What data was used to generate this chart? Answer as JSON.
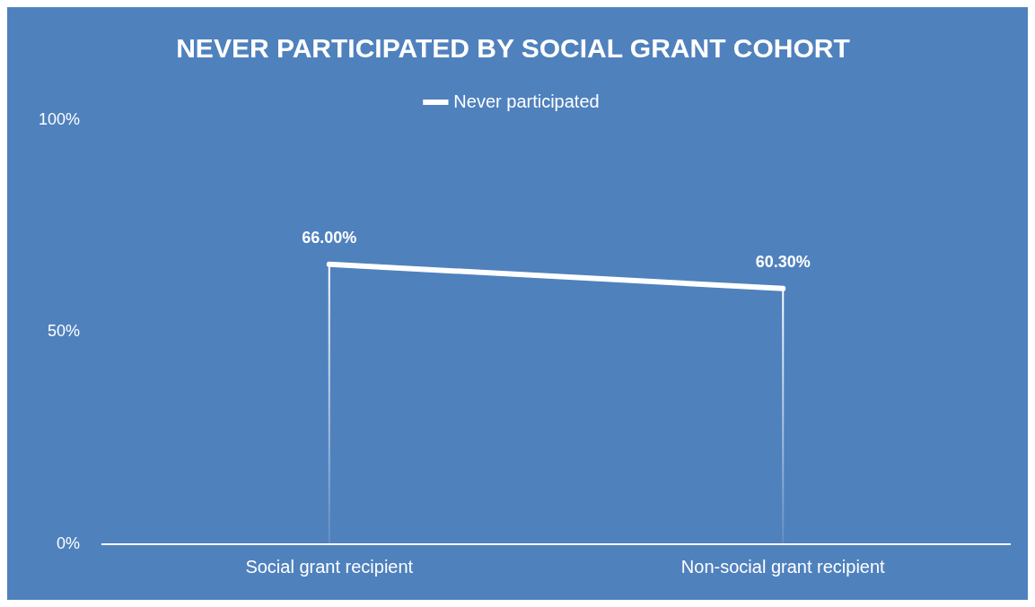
{
  "chart_data": {
    "type": "line",
    "title": "NEVER PARTICIPATED BY SOCIAL GRANT COHORT",
    "categories": [
      "Social grant recipient",
      "Non-social grant recipient"
    ],
    "series": [
      {
        "name": "Never participated",
        "color": "#ffffff",
        "values": [
          66.0,
          60.3
        ],
        "value_labels": [
          "66.00%",
          "60.30%"
        ]
      }
    ],
    "ylim": [
      0,
      100
    ],
    "yticks": [
      {
        "value": 0,
        "label": "0%"
      },
      {
        "value": 50,
        "label": "50%"
      },
      {
        "value": 100,
        "label": "100%"
      }
    ],
    "grid": false,
    "legend": "top",
    "line_style": "solid"
  }
}
